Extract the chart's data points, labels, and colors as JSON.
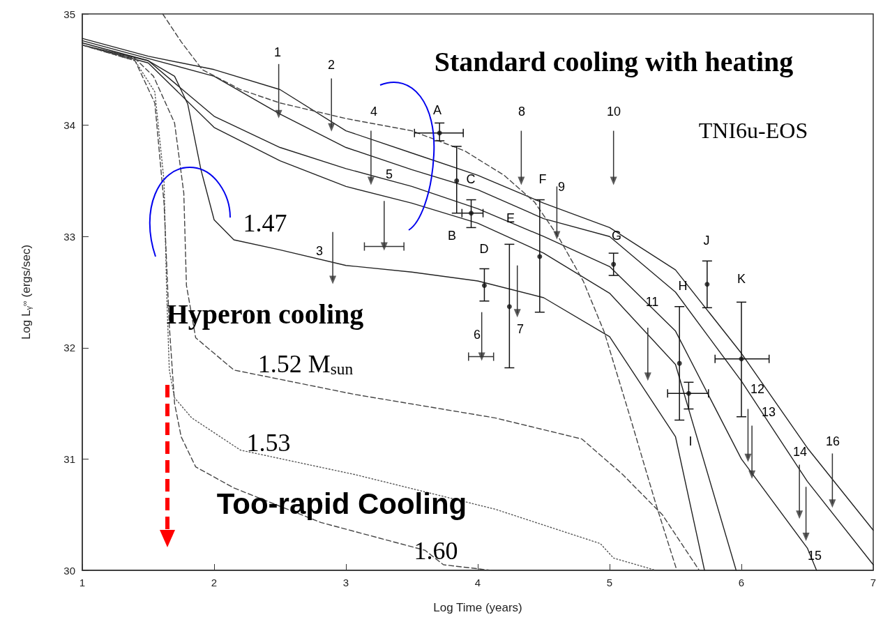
{
  "chart_data": {
    "type": "line",
    "xlabel": "Log Time (years)",
    "ylabel": "Log L$_{γ}$$^{∞}$ (ergs/sec)",
    "xlim": [
      1,
      7
    ],
    "xticks": [
      1,
      2,
      3,
      4,
      5,
      6,
      7
    ],
    "ylim": [
      30,
      35
    ],
    "yticks": [
      30,
      31,
      32,
      33,
      34,
      35
    ],
    "marker": "none",
    "series": [
      {
        "color": "#222222",
        "line_style": "solid",
        "x": [
          1,
          1.5,
          2,
          2.5,
          3,
          3.5,
          4,
          4.5,
          5,
          5.5,
          6,
          6.5,
          7
        ],
        "values": [
          34.78,
          34.62,
          34.5,
          34.32,
          33.95,
          33.75,
          33.55,
          33.3,
          33.08,
          32.7,
          31.95,
          31.1,
          30.36
        ]
      },
      {
        "color": "#222222",
        "line_style": "solid",
        "x": [
          1,
          1.5,
          2,
          2.5,
          3,
          3.5,
          4,
          4.5,
          5,
          5.5,
          6,
          6.5,
          7
        ],
        "values": [
          34.76,
          34.6,
          34.44,
          34.1,
          33.8,
          33.6,
          33.42,
          33.16,
          33.0,
          32.5,
          31.7,
          30.8,
          30.05
        ]
      },
      {
        "color": "#222222",
        "line_style": "solid",
        "x": [
          1,
          1.5,
          2,
          2.5,
          3,
          3.5,
          4,
          4.5,
          5,
          5.5,
          6,
          6.5,
          6.57
        ],
        "values": [
          34.74,
          34.58,
          34.08,
          33.8,
          33.61,
          33.45,
          33.25,
          33.0,
          32.73,
          32.15,
          31.0,
          30.2,
          30.0
        ]
      },
      {
        "color": "#222222",
        "line_style": "solid",
        "x": [
          1,
          1.5,
          2,
          2.5,
          3,
          3.5,
          4,
          4.5,
          5,
          5.5,
          5.96
        ],
        "values": [
          34.72,
          34.56,
          33.98,
          33.68,
          33.45,
          33.3,
          33.12,
          32.85,
          32.49,
          31.85,
          30.0
        ]
      },
      {
        "color": "#222222",
        "line_style": "solid",
        "x": [
          1,
          1.5,
          1.7,
          1.8,
          1.9,
          2,
          2.15,
          2.5,
          3,
          3.5,
          4,
          4.5,
          5,
          5.5,
          5.72
        ],
        "values": [
          34.72,
          34.58,
          34.44,
          34.19,
          33.6,
          33.15,
          32.97,
          32.88,
          32.74,
          32.68,
          32.6,
          32.45,
          32.1,
          31.2,
          30.0
        ]
      },
      {
        "color": "#444444",
        "line_style": "dashed",
        "x": [
          1.61,
          1.75,
          1.91,
          2.2,
          2.5,
          3,
          3.5,
          3.9,
          4.2,
          4.43,
          4.61,
          4.8,
          4.96,
          5.15,
          5.35,
          5.51
        ],
        "values": [
          35,
          34.75,
          34.5,
          34.32,
          34.2,
          34.06,
          33.95,
          33.77,
          33.55,
          33.31,
          33.0,
          32.6,
          32.14,
          31.4,
          30.6,
          30.0
        ]
      },
      {
        "color": "#444444",
        "line_style": "dashed",
        "x": [
          1,
          1.4,
          1.54,
          1.7,
          1.77,
          1.79,
          1.86,
          2.15,
          3.07,
          4.13,
          4.79,
          5.1,
          5.4,
          5.68
        ],
        "values": [
          34.72,
          34.6,
          34.44,
          34.02,
          33.39,
          32.56,
          32.09,
          31.8,
          31.58,
          31.37,
          31.18,
          30.86,
          30.5,
          30.0
        ]
      },
      {
        "color": "#555555",
        "line_style": "dotted",
        "x": [
          1,
          1.4,
          1.55,
          1.62,
          1.64,
          1.66,
          1.7,
          1.83,
          2.2,
          3.07,
          4.13,
          4.93,
          5.03,
          5.35
        ],
        "values": [
          34.72,
          34.58,
          34.3,
          33.5,
          32.5,
          31.8,
          31.55,
          31.37,
          31.08,
          30.86,
          30.55,
          30.24,
          30.11,
          30.0
        ]
      },
      {
        "color": "#444444",
        "line_style": "dashed",
        "x": [
          1,
          1.4,
          1.55,
          1.62,
          1.66,
          1.7,
          1.75,
          1.86,
          2.15,
          2.81,
          3.6,
          3.74,
          4.1
        ],
        "values": [
          34.72,
          34.58,
          34.2,
          33.3,
          32.2,
          31.5,
          31.2,
          30.93,
          30.74,
          30.43,
          30.18,
          30.05,
          30.0
        ]
      },
      {
        "type": "scatter",
        "color": "#111111",
        "marker": "circle",
        "x": [
          3.71,
          3.84,
          3.95,
          4.05,
          4.24,
          4.47,
          5.03,
          5.53,
          5.6,
          5.74,
          6.0
        ],
        "values": [
          33.93,
          33.5,
          33.21,
          32.56,
          32.37,
          32.82,
          32.75,
          31.86,
          31.59,
          32.57,
          31.9
        ],
        "errors": [
          [
            33.86,
            34.02
          ],
          [
            33.21,
            33.81
          ],
          [
            33.08,
            33.33
          ],
          [
            32.42,
            32.71
          ],
          [
            31.82,
            32.93
          ],
          [
            32.32,
            33.33
          ],
          [
            32.65,
            32.85
          ],
          [
            31.35,
            32.37
          ],
          [
            31.45,
            31.69
          ],
          [
            32.36,
            32.78
          ],
          [
            31.38,
            32.41
          ]
        ],
        "xerrors": [
          [
            3.52,
            3.89
          ],
          null,
          [
            3.88,
            4.04
          ],
          null,
          null,
          null,
          null,
          null,
          [
            5.44,
            5.75
          ],
          null,
          [
            5.8,
            6.21
          ]
        ]
      },
      {
        "type": "scatter",
        "color": "#333333",
        "marker": "triangle",
        "x": [
          2.49,
          2.89,
          2.9,
          3.19,
          3.29,
          4.03,
          4.3,
          4.33,
          4.6,
          5.03,
          5.29,
          6.05,
          6.08,
          6.44,
          6.49,
          6.69
        ],
        "values": [
          34.1,
          33.98,
          32.61,
          33.5,
          32.91,
          31.92,
          32.31,
          33.5,
          33.01,
          33.5,
          31.74,
          31.01,
          30.86,
          30.5,
          30.3,
          30.6
        ],
        "errors": [
          [
            34.1,
            34.55
          ],
          [
            33.98,
            34.42
          ],
          [
            32.61,
            33.04
          ],
          [
            33.5,
            33.95
          ],
          [
            32.91,
            33.32
          ],
          [
            31.92,
            32.32
          ],
          [
            32.31,
            32.74
          ],
          [
            33.5,
            33.95
          ],
          [
            33.01,
            33.45
          ],
          [
            33.5,
            33.95
          ],
          [
            31.74,
            32.18
          ],
          [
            31.01,
            31.45
          ],
          [
            30.86,
            31.3
          ],
          [
            30.5,
            30.95
          ],
          [
            30.3,
            30.75
          ],
          [
            30.6,
            31.05
          ]
        ],
        "xerrors": [
          null,
          null,
          null,
          null,
          [
            3.14,
            3.44
          ],
          [
            3.93,
            4.12
          ],
          null,
          null,
          null,
          null,
          null,
          null,
          null,
          null,
          null,
          null
        ]
      }
    ],
    "annotations": [
      "Standard cooling with heating",
      "Hyperon cooling",
      "Too-rapid Cooling",
      "TNI6u-EOS",
      "1",
      "2",
      "3",
      "4",
      "5",
      "6",
      "7",
      "8",
      "9",
      "10",
      "11",
      "12",
      "13",
      "14",
      "15",
      "16",
      "A",
      "B",
      "C",
      "D",
      "E",
      "F",
      "G",
      "H",
      "I",
      "J",
      "K",
      "1.47",
      "1.52 M$_{sun}$",
      "1.53",
      "1.60"
    ]
  }
}
